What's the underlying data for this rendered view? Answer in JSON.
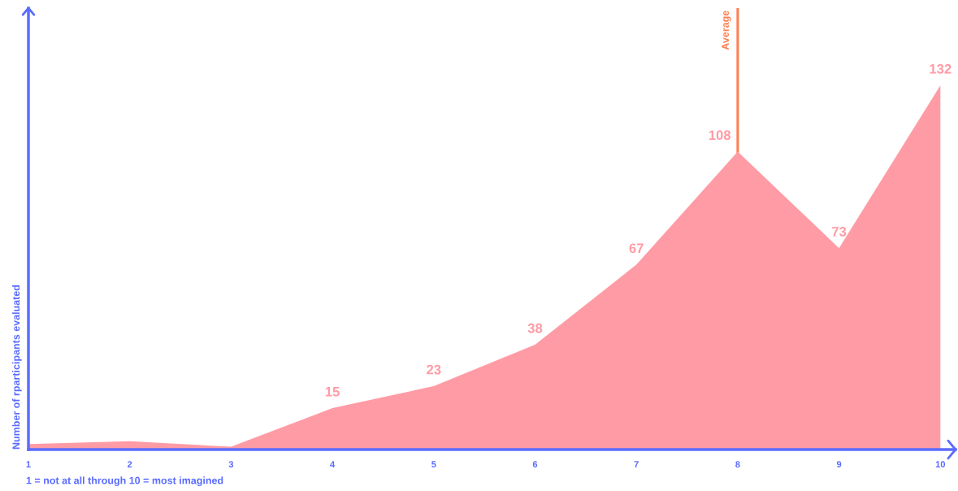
{
  "chart_data": {
    "type": "area",
    "ylabel": "Number of rparticipants evaluated",
    "x": [
      1,
      2,
      3,
      4,
      5,
      6,
      7,
      8,
      9,
      10
    ],
    "values": [
      2,
      3,
      1,
      15,
      23,
      38,
      67,
      108,
      73,
      132
    ],
    "value_labels": [
      null,
      null,
      null,
      "15",
      "23",
      "38",
      "67",
      "108",
      "73",
      "132"
    ],
    "color": "#ff9ba5",
    "xlim": [
      1,
      10.15
    ],
    "ylim": [
      0,
      160
    ],
    "xticks": [
      1,
      2,
      3,
      4,
      5,
      6,
      7,
      8,
      9,
      10
    ],
    "tick_labels": "x",
    "grid": false,
    "legend": false,
    "ref_lines": [
      {
        "axis": "x",
        "value": 8,
        "label": "Average",
        "color": "#ff7f50",
        "line_style": "solid"
      }
    ],
    "annotations": [
      "1 = not at all through 10 = most imagined"
    ]
  }
}
